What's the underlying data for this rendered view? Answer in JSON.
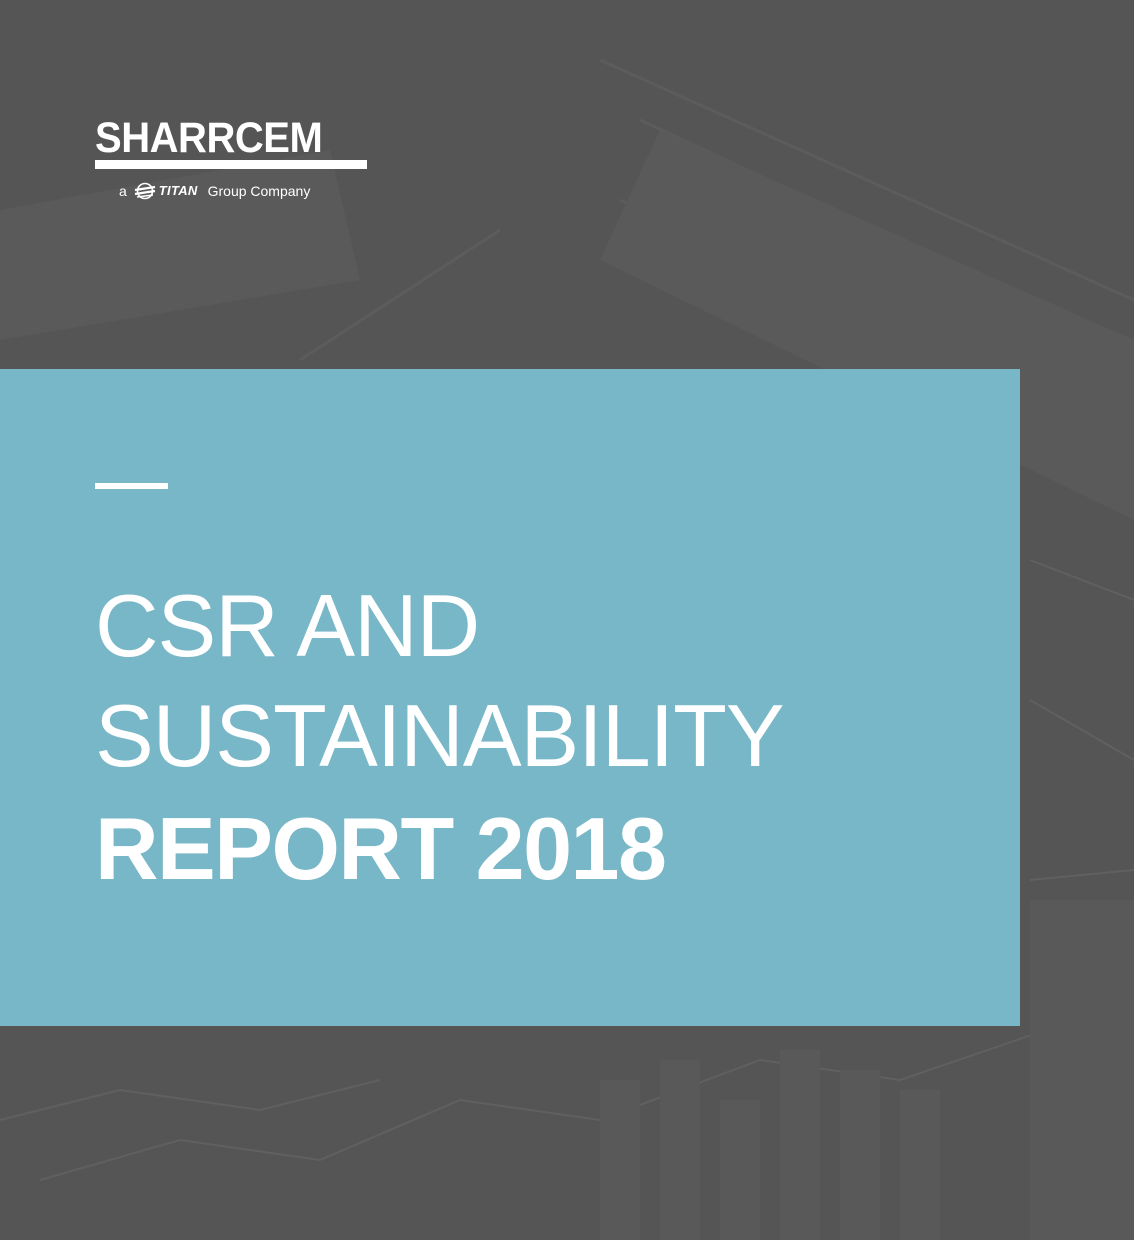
{
  "logo": {
    "wordmark": "SHARRCEM",
    "tagline_prefix": "a",
    "parent_brand": "TITAN",
    "tagline_suffix": "Group Company",
    "icon": "titan-swirl-icon"
  },
  "cover": {
    "title_line_1": "CSR AND",
    "title_line_2": "SUSTAINABILITY",
    "title_line_3": "REPORT 2018"
  },
  "colors": {
    "background": "#565556",
    "panel": "#78b7c7",
    "text": "#ffffff"
  }
}
